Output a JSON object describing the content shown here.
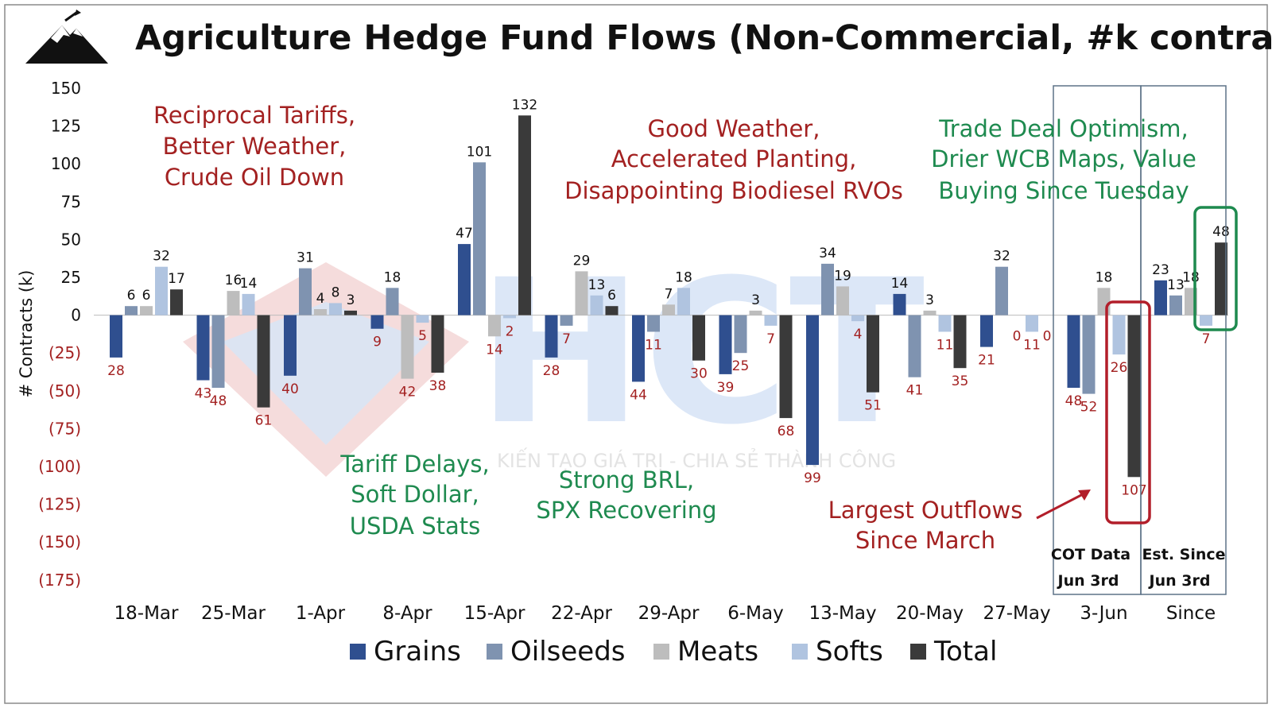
{
  "chart_data": {
    "type": "bar",
    "title": "Agriculture Hedge Fund Flows (Non-Commercial, #k contracts)",
    "ylabel": "# Contracts (k)",
    "ylim": [
      -175,
      150
    ],
    "y_ticks": [
      "150",
      "125",
      "100",
      "75",
      "50",
      "25",
      "0",
      "(25)",
      "(50)",
      "(75)",
      "(100)",
      "(125)",
      "(150)",
      "(175)"
    ],
    "categories": [
      "18-Mar",
      "25-Mar",
      "1-Apr",
      "8-Apr",
      "15-Apr",
      "22-Apr",
      "29-Apr",
      "6-May",
      "13-May",
      "20-May",
      "27-May",
      "3-Jun",
      "Since"
    ],
    "series": [
      {
        "name": "Grains",
        "color": "#2f4f8f",
        "values": [
          -28,
          -43,
          -40,
          -9,
          47,
          -28,
          -44,
          -39,
          -99,
          14,
          -21,
          -48,
          23
        ]
      },
      {
        "name": "Oilseeds",
        "color": "#7f93b0",
        "values": [
          6,
          -48,
          31,
          18,
          101,
          -7,
          -11,
          -25,
          34,
          -41,
          32,
          -52,
          13
        ]
      },
      {
        "name": "Meats",
        "color": "#bdbdbd",
        "values": [
          6,
          16,
          4,
          -42,
          -14,
          29,
          7,
          3,
          19,
          3,
          0,
          18,
          18
        ]
      },
      {
        "name": "Softs",
        "color": "#b0c4e0",
        "values": [
          32,
          14,
          8,
          -5,
          -2,
          13,
          18,
          -7,
          -4,
          -11,
          -11,
          -26,
          -7
        ]
      },
      {
        "name": "Total",
        "color": "#3a3a3a",
        "values": [
          17,
          -61,
          3,
          -38,
          132,
          6,
          -30,
          -68,
          -51,
          -35,
          0,
          -107,
          48
        ]
      }
    ],
    "legend": {
      "position": "bottom",
      "entries": [
        "Grains",
        "Oilseeds",
        "Meats",
        "Softs",
        "Total"
      ]
    },
    "annotations": [
      {
        "lines": [
          "Reciprocal Tariffs,",
          "Better Weather,",
          "Crude Oil Down"
        ],
        "color": "#a32121"
      },
      {
        "lines": [
          "Good Weather,",
          "Accelerated Planting,",
          "Disappointing Biodiesel RVOs"
        ],
        "color": "#a32121"
      },
      {
        "lines": [
          "Trade Deal Optimism,",
          "Drier WCB Maps, Value",
          "Buying Since Tuesday"
        ],
        "color": "#1e8a4f"
      },
      {
        "lines": [
          "Tariff Delays,",
          "Soft Dollar,",
          "USDA Stats"
        ],
        "color": "#1e8a4f"
      },
      {
        "lines": [
          "Strong BRL,",
          "SPX Recovering"
        ],
        "color": "#1e8a4f"
      },
      {
        "lines": [
          "Largest Outflows",
          "Since March"
        ],
        "color": "#a32121"
      },
      {
        "lines": [
          "COT Data",
          "Jun 3rd"
        ],
        "color": "#111111"
      },
      {
        "lines": [
          "Est. Since",
          "Jun 3rd"
        ],
        "color": "#111111"
      }
    ],
    "positive_label_color": "#111111",
    "negative_label_color": "#a32121",
    "highlight_colors": {
      "outflow_box": "#b21e2a",
      "since_box": "#1e8a4f"
    }
  },
  "watermark": {
    "text": "KIẾN TẠO GIÁ TRỊ - CHIA SẺ THÀNH CÔNG",
    "logo_text": "HCT"
  }
}
